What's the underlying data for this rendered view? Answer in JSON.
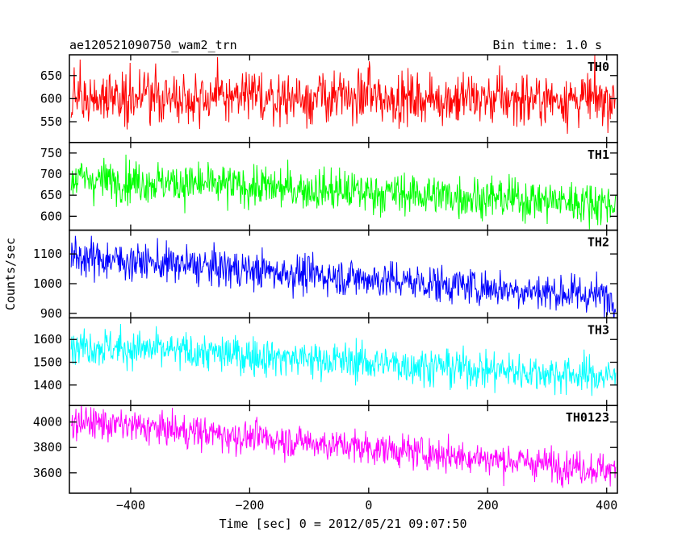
{
  "header": {
    "title": "ae120521090750_wam2_trn",
    "bin_time": "Bin time: 1.0 s"
  },
  "axes": {
    "xlabel": "Time [sec] 0 = 2012/05/21 09:07:50",
    "ylabel": "Counts/sec"
  },
  "chart_data": {
    "type": "line",
    "title": "ae120521090750_wam2_trn",
    "xlabel": "Time [sec] 0 = 2012/05/21 09:07:50",
    "ylabel": "Counts/sec",
    "xlim": [
      -503,
      418
    ],
    "x_range": [
      -500,
      415
    ],
    "x_step": 1.0,
    "x_ticks": [
      -400,
      -200,
      0,
      200,
      400
    ],
    "x_tick_labels": [
      "−400",
      "−200",
      "0",
      "200",
      "400"
    ],
    "grid": false,
    "series": [
      {
        "name": "TH0",
        "color": "#ff0000",
        "ylim": [
          505,
          695
        ],
        "y_ticks": [
          550,
          600,
          650
        ],
        "y_tick_labels": [
          "550",
          "600",
          "650"
        ],
        "trend_start": 605,
        "trend_end": 598,
        "noise_sd": 28,
        "spike_time": 0,
        "spike_height": 45
      },
      {
        "name": "TH1",
        "color": "#00ff00",
        "ylim": [
          567,
          775
        ],
        "y_ticks": [
          600,
          650,
          700,
          750
        ],
        "y_tick_labels": [
          "600",
          "650",
          "700",
          "750"
        ],
        "trend_start": 690,
        "trend_end": 630,
        "noise_sd": 25,
        "spike_time": null,
        "spike_height": 0
      },
      {
        "name": "TH2",
        "color": "#0000ff",
        "ylim": [
          885,
          1180
        ],
        "y_ticks": [
          900,
          1000,
          1100
        ],
        "y_tick_labels": [
          "900",
          "1000",
          "1100"
        ],
        "trend_start": 1090,
        "trend_end": 955,
        "noise_sd": 32,
        "spike_time": null,
        "spike_height": 0
      },
      {
        "name": "TH3",
        "color": "#00ffff",
        "ylim": [
          1310,
          1695
        ],
        "y_ticks": [
          1400,
          1500,
          1600
        ],
        "y_tick_labels": [
          "1400",
          "1500",
          "1600"
        ],
        "trend_start": 1575,
        "trend_end": 1435,
        "noise_sd": 42,
        "spike_time": null,
        "spike_height": 0
      },
      {
        "name": "TH0123",
        "color": "#ff00ff",
        "ylim": [
          3440,
          4130
        ],
        "y_ticks": [
          3600,
          3800,
          4000
        ],
        "y_tick_labels": [
          "3600",
          "3800",
          "4000"
        ],
        "trend_start": 4010,
        "trend_end": 3620,
        "noise_sd": 65,
        "spike_time": null,
        "spike_height": 0
      }
    ]
  }
}
